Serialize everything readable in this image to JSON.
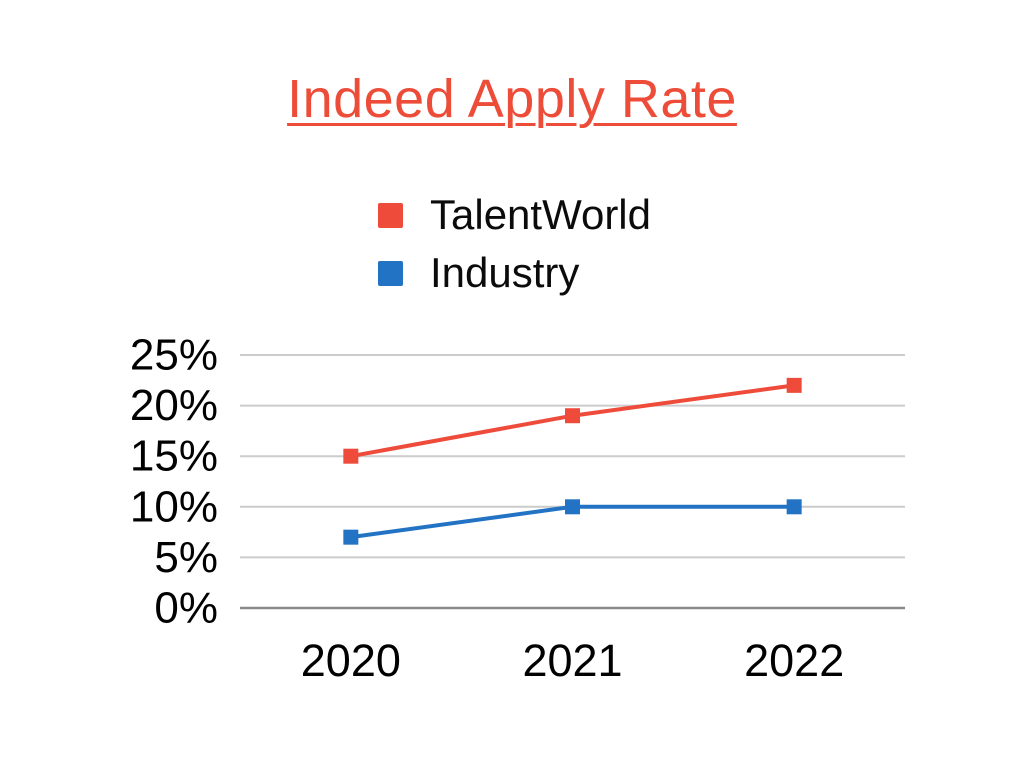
{
  "page": {
    "background": "#ffffff"
  },
  "title": {
    "text": "Indeed Apply Rate",
    "color": "#ed4c38",
    "underlined": true
  },
  "chart_data": {
    "type": "line",
    "title": "Indeed Apply Rate",
    "categories": [
      "2020",
      "2021",
      "2022"
    ],
    "series": [
      {
        "name": "TalentWorld",
        "color": "#ee4b3b",
        "values": [
          15,
          19,
          22
        ]
      },
      {
        "name": "Industry",
        "color": "#2273c4",
        "values": [
          7,
          10,
          10
        ]
      }
    ],
    "xlabel": "",
    "ylabel": "",
    "ylim": [
      0,
      25
    ],
    "yticks": [
      0,
      5,
      10,
      15,
      20,
      25
    ],
    "ytick_labels": [
      "0%",
      "5%",
      "10%",
      "15%",
      "20%",
      "25%"
    ],
    "grid": true,
    "gridline_color": "#cccccc",
    "axis_line_color": "#8a8a8a",
    "tick_label_color": "#000000",
    "legend_position": "top",
    "marker": "square"
  }
}
